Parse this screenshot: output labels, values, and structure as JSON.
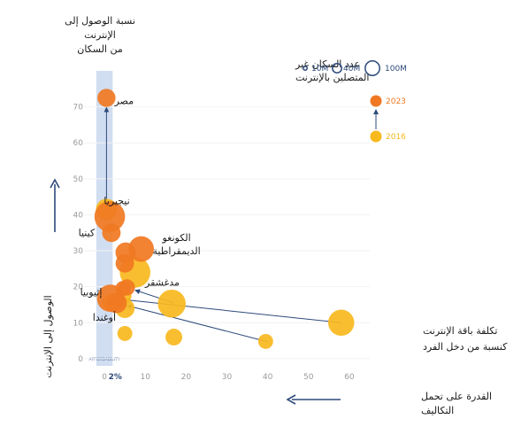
{
  "chart_data": {
    "type": "scatter",
    "title": "نسبة الوصول إلى الإنترنت من السكان",
    "xlabel": "القدرة على تحمل التكاليف",
    "ylabel": "الوصول إلى الإنترنت",
    "xlim": [
      -5,
      65
    ],
    "ylim": [
      -2,
      80
    ],
    "x_ticks": [
      0,
      10,
      20,
      30,
      40,
      50,
      60
    ],
    "y_ticks": [
      0,
      10,
      20,
      30,
      40,
      50,
      60,
      70
    ],
    "band_label": "AFFORDABILITY",
    "band_tick": "2%",
    "band_range": [
      -2,
      2
    ],
    "colors": {
      "2023": "#f07822",
      "2016": "#f8b91e",
      "arrow": "#2d4a7a",
      "band": "#c9d7ee"
    },
    "legend": {
      "size_title": "عدد السكان غير المتصلين بالإنترنت",
      "sizes": [
        {
          "label": "10M",
          "population_millions": 10
        },
        {
          "label": "40M",
          "population_millions": 40
        },
        {
          "label": "100M",
          "population_millions": 100
        }
      ],
      "years": [
        {
          "label": "2023",
          "color": "#f07822"
        },
        {
          "label": "2016",
          "color": "#f8b91e"
        }
      ]
    },
    "points": [
      {
        "label": "مصر",
        "x": 0.5,
        "y": 72.5,
        "size_millions": 28,
        "year": "2023",
        "from": {
          "x": 0.5,
          "y": 40
        }
      },
      {
        "label": "نيجيريا",
        "x": 1.3,
        "y": 39.5,
        "size_millions": 120,
        "year": "2023"
      },
      {
        "label": "كينيا",
        "x": 1.7,
        "y": 35,
        "size_millions": 30,
        "year": "2023"
      },
      {
        "label": "الكونغو الديمقراطية",
        "x": 9,
        "y": 30.5,
        "size_millions": 75,
        "year": "2023"
      },
      {
        "label": "مدغشقر",
        "x": 5.5,
        "y": 19.8,
        "size_millions": 20,
        "year": "2023",
        "from": {
          "x": 17,
          "y": 15.5
        }
      },
      {
        "label": "إثيوبيا",
        "x": 1.5,
        "y": 16.8,
        "size_millions": 90,
        "year": "2023",
        "from": {
          "x": 58,
          "y": 10
        }
      },
      {
        "label": "أوغندا",
        "x": 3,
        "y": 15.5,
        "size_millions": 40,
        "year": "2023",
        "from": {
          "x": 40,
          "y": 4.7
        }
      },
      {
        "label": "",
        "x": 5.2,
        "y": 29.5,
        "size_millions": 40,
        "year": "2023"
      },
      {
        "label": "",
        "x": 5.0,
        "y": 26.5,
        "size_millions": 30,
        "year": "2023"
      },
      {
        "label": "",
        "x": 4.5,
        "y": 19.5,
        "size_millions": 15,
        "year": "2023"
      },
      {
        "label": "",
        "x": 0.5,
        "y": 41.5,
        "size_millions": 45,
        "year": "2016"
      },
      {
        "label": "",
        "x": 7.5,
        "y": 24,
        "size_millions": 120,
        "year": "2016"
      },
      {
        "label": "",
        "x": 16.5,
        "y": 15.3,
        "size_millions": 95,
        "year": "2016"
      },
      {
        "label": "",
        "x": 58,
        "y": 10,
        "size_millions": 80,
        "year": "2016"
      },
      {
        "label": "",
        "x": 39.5,
        "y": 4.8,
        "size_millions": 15,
        "year": "2016"
      },
      {
        "label": "",
        "x": 17,
        "y": 6,
        "size_millions": 22,
        "year": "2016"
      },
      {
        "label": "",
        "x": 5,
        "y": 7,
        "size_millions": 15,
        "year": "2016"
      },
      {
        "label": "",
        "x": 5,
        "y": 14,
        "size_millions": 35,
        "year": "2016"
      },
      {
        "label": "",
        "x": 4.8,
        "y": 17.5,
        "size_millions": 15,
        "year": "2016"
      },
      {
        "label": "",
        "x": 1.5,
        "y": 15.5,
        "size_millions": 20,
        "year": "2016"
      }
    ],
    "annotation": "تكلفة باقة الإنترنت كنسبة من دخل الفرد"
  }
}
